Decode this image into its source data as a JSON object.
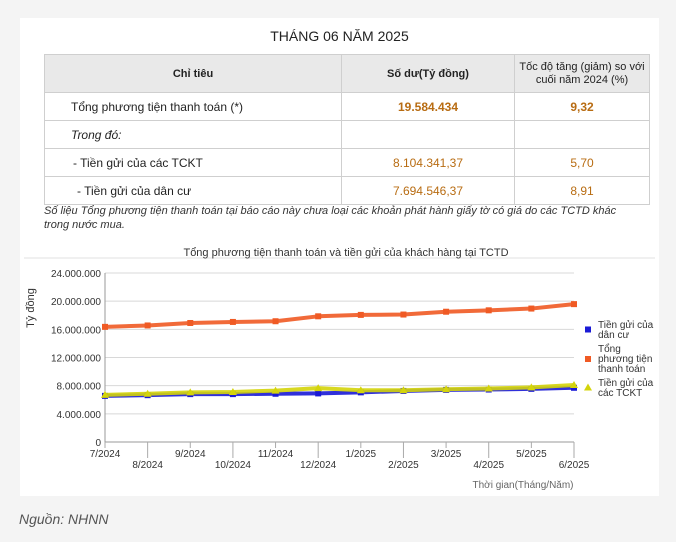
{
  "report": {
    "title": "THÁNG 06 NĂM 2025",
    "table": {
      "headers": [
        "Chỉ tiêu",
        "Số dư(Tỷ đồng)",
        "Tốc độ tăng (giảm) so với cuối năm 2024 (%)"
      ],
      "rows": [
        {
          "label": "Tổng phương tiện thanh toán (*)",
          "balance": "19.584.434",
          "growth": "9,32"
        },
        {
          "label": "Trong đó:",
          "balance": "",
          "growth": ""
        },
        {
          "label": "- Tiền gửi của các TCKT",
          "balance": "8.104.341,37",
          "growth": "5,70"
        },
        {
          "label": "- Tiền gửi của dân cư",
          "balance": "7.694.546,37",
          "growth": "8,91"
        }
      ]
    },
    "footnote": "Số liệu Tổng phương tiện thanh toán tại báo cáo này chưa loại các khoản phát hành giấy tờ có giá do các TCTD khác trong nước mua.",
    "source": "Nguồn: NHNN"
  },
  "colors": {
    "total": "#f05a24",
    "resident": "#1a1ad6",
    "tckt": "#d4d40a",
    "value_text": "#b86c12"
  },
  "chart_data": {
    "type": "line",
    "title": "Tổng phương tiện thanh toán và tiền gửi của khách hàng tại TCTD",
    "xlabel": "Thời gian(Tháng/Năm)",
    "ylabel": "Tỷ đồng",
    "ylim": [
      0,
      24000000
    ],
    "yticks": [
      0,
      4000000,
      8000000,
      12000000,
      16000000,
      20000000,
      24000000
    ],
    "ytick_labels": [
      "0",
      "4.000.000",
      "8.000.000",
      "12.000.000",
      "16.000.000",
      "20.000.000",
      "24.000.000"
    ],
    "categories": [
      "7/2024",
      "8/2024",
      "9/2024",
      "10/2024",
      "11/2024",
      "12/2024",
      "1/2025",
      "2/2025",
      "3/2025",
      "4/2025",
      "5/2025",
      "6/2025"
    ],
    "grid": "horizontal",
    "legend_position": "right",
    "series": [
      {
        "name": "Tiền gửi của dân cư",
        "color_key": "resident",
        "marker": "square",
        "values": [
          6550000,
          6650000,
          6800000,
          6800000,
          6850000,
          6900000,
          7050000,
          7250000,
          7400000,
          7450000,
          7550000,
          7700000
        ]
      },
      {
        "name": "Tổng phương tiện thanh toán",
        "color_key": "total",
        "marker": "square",
        "values": [
          16350000,
          16550000,
          16900000,
          17050000,
          17150000,
          17850000,
          18050000,
          18100000,
          18500000,
          18700000,
          18950000,
          19580000
        ]
      },
      {
        "name": "Tiền gửi của các TCKT",
        "color_key": "tckt",
        "marker": "triangle",
        "values": [
          6700000,
          6850000,
          7050000,
          7100000,
          7300000,
          7650000,
          7350000,
          7350000,
          7500000,
          7600000,
          7750000,
          8100000
        ]
      }
    ]
  }
}
